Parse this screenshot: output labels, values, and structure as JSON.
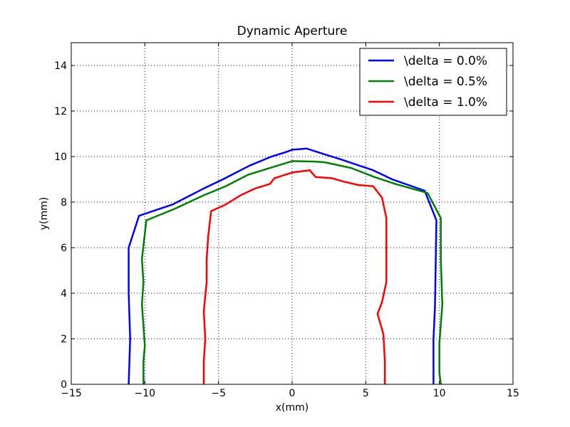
{
  "chart_data": {
    "type": "line",
    "title": "Dynamic Aperture",
    "xlabel": "x(mm)",
    "ylabel": "y(mm)",
    "xlim": [
      -15,
      15
    ],
    "ylim": [
      0,
      15
    ],
    "xticks": [
      -15,
      -10,
      -5,
      0,
      5,
      10,
      15
    ],
    "yticks": [
      0,
      2,
      4,
      6,
      8,
      10,
      12,
      14
    ],
    "xtick_labels": [
      "−15",
      "−10",
      "−5",
      "0",
      "5",
      "10",
      "15"
    ],
    "ytick_labels": [
      "0",
      "2",
      "4",
      "6",
      "8",
      "10",
      "12",
      "14"
    ],
    "grid": true,
    "legend_position": "top-right",
    "series": [
      {
        "name": "\\delta = 0.0%",
        "color": "#0000ff",
        "points": [
          [
            -11.1,
            0.0
          ],
          [
            -11.0,
            2.0
          ],
          [
            -11.1,
            4.0
          ],
          [
            -11.1,
            6.0
          ],
          [
            -10.4,
            7.4
          ],
          [
            -8.1,
            7.9
          ],
          [
            -6.0,
            8.6
          ],
          [
            -4.7,
            9.0
          ],
          [
            -2.9,
            9.6
          ],
          [
            -1.4,
            10.0
          ],
          [
            -0.4,
            10.2
          ],
          [
            0.0,
            10.3
          ],
          [
            1.0,
            10.35
          ],
          [
            2.2,
            10.1
          ],
          [
            3.2,
            9.9
          ],
          [
            5.5,
            9.4
          ],
          [
            6.8,
            9.0
          ],
          [
            9.0,
            8.5
          ],
          [
            9.8,
            7.2
          ],
          [
            9.7,
            3.4
          ],
          [
            9.6,
            2.0
          ],
          [
            9.6,
            0.0
          ]
        ]
      },
      {
        "name": "\\delta = 0.5%",
        "color": "#008000",
        "points": [
          [
            -10.1,
            0.0
          ],
          [
            -10.1,
            1.0
          ],
          [
            -10.0,
            1.7
          ],
          [
            -10.2,
            3.5
          ],
          [
            -10.1,
            4.5
          ],
          [
            -10.2,
            5.5
          ],
          [
            -9.9,
            7.2
          ],
          [
            -8.0,
            7.7
          ],
          [
            -6.0,
            8.3
          ],
          [
            -4.5,
            8.7
          ],
          [
            -3.0,
            9.2
          ],
          [
            -1.0,
            9.6
          ],
          [
            0.0,
            9.8
          ],
          [
            1.5,
            9.78
          ],
          [
            2.2,
            9.75
          ],
          [
            4.0,
            9.5
          ],
          [
            5.6,
            9.1
          ],
          [
            7.0,
            8.8
          ],
          [
            9.2,
            8.4
          ],
          [
            10.1,
            7.3
          ],
          [
            10.1,
            5.5
          ],
          [
            10.2,
            3.5
          ],
          [
            10.0,
            1.8
          ],
          [
            10.0,
            0.5
          ],
          [
            10.1,
            0.0
          ]
        ]
      },
      {
        "name": "\\delta = 1.0%",
        "color": "#ff0000",
        "points": [
          [
            -6.0,
            0.0
          ],
          [
            -6.0,
            1.0
          ],
          [
            -5.9,
            2.0
          ],
          [
            -6.0,
            3.2
          ],
          [
            -5.8,
            4.5
          ],
          [
            -5.8,
            5.5
          ],
          [
            -5.7,
            6.5
          ],
          [
            -5.5,
            7.6
          ],
          [
            -4.5,
            7.9
          ],
          [
            -3.5,
            8.3
          ],
          [
            -2.5,
            8.6
          ],
          [
            -1.5,
            8.8
          ],
          [
            -1.2,
            9.05
          ],
          [
            0.0,
            9.3
          ],
          [
            1.2,
            9.4
          ],
          [
            1.6,
            9.1
          ],
          [
            2.7,
            9.05
          ],
          [
            3.5,
            8.9
          ],
          [
            4.5,
            8.75
          ],
          [
            5.5,
            8.7
          ],
          [
            6.1,
            8.2
          ],
          [
            6.4,
            7.3
          ],
          [
            6.4,
            5.5
          ],
          [
            6.4,
            4.5
          ],
          [
            6.1,
            3.6
          ],
          [
            5.8,
            3.1
          ],
          [
            6.2,
            2.2
          ],
          [
            6.3,
            1.0
          ],
          [
            6.3,
            0.0
          ]
        ]
      }
    ]
  }
}
